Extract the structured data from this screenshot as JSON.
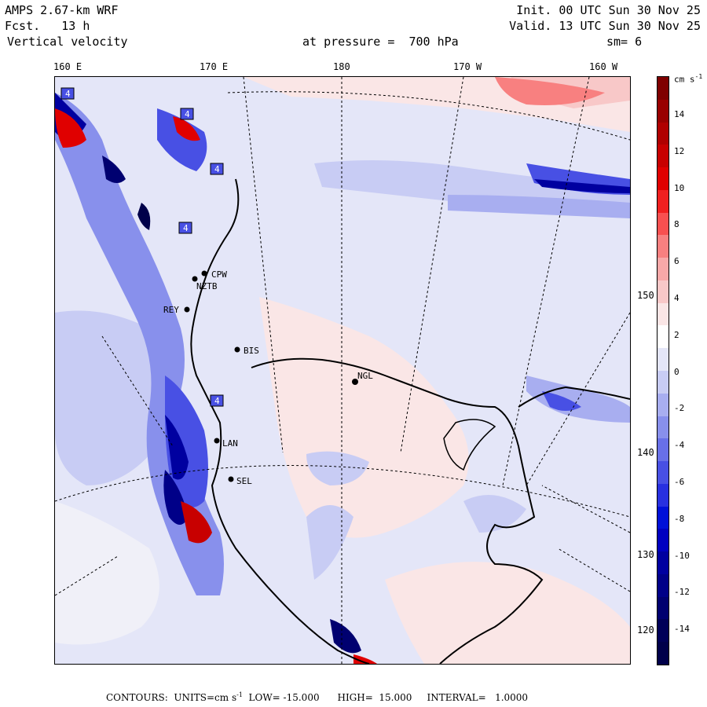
{
  "header": {
    "model": "AMPS 2.67-km WRF",
    "forecast": "Fcst.   13 h",
    "field": "Vertical velocity",
    "init": "Init. 00 UTC Sun 30 Nov 25",
    "valid": "Valid. 13 UTC Sun 30 Nov 25",
    "pressure": "at pressure =  700 hPa",
    "smoothing": "sm= 6"
  },
  "longitude_labels": [
    "160 E",
    "170 E",
    "180",
    "170 W",
    "160 W"
  ],
  "latitude_labels": [
    "150 W",
    "140 W",
    "130 W",
    "120 W"
  ],
  "stations": [
    "CPW",
    "NZTB",
    "REY",
    "BIS",
    "NGL",
    "LAN",
    "SEL"
  ],
  "box_labels": [
    "4",
    "4",
    "4",
    "4",
    "4"
  ],
  "colorbar": {
    "units": "cm s",
    "units_exp": "-1",
    "tick_labels": [
      "14",
      "12",
      "10",
      "8",
      "6",
      "4",
      "2",
      "0",
      "-2",
      "-4",
      "-6",
      "-8",
      "-10",
      "-12",
      "-14"
    ],
    "colors": [
      "#7f0000",
      "#990000",
      "#b00000",
      "#c80000",
      "#e00000",
      "#f02020",
      "#f85050",
      "#f88080",
      "#f8a8a8",
      "#f8c8c8",
      "#fae6e6",
      "#ffffff",
      "#e4e6f8",
      "#c8ccf4",
      "#a8aef0",
      "#8890ec",
      "#6870e8",
      "#4850e4",
      "#2830e0",
      "#0010d8",
      "#0000c0",
      "#0000a0",
      "#000088",
      "#000070",
      "#000058",
      "#00004a"
    ]
  },
  "footer": {
    "text": "CONTOURS:  UNITS=cm s",
    "exp": "-1",
    "rest": "  LOW= -15.000      HIGH=  15.000     INTERVAL=   1.0000"
  }
}
